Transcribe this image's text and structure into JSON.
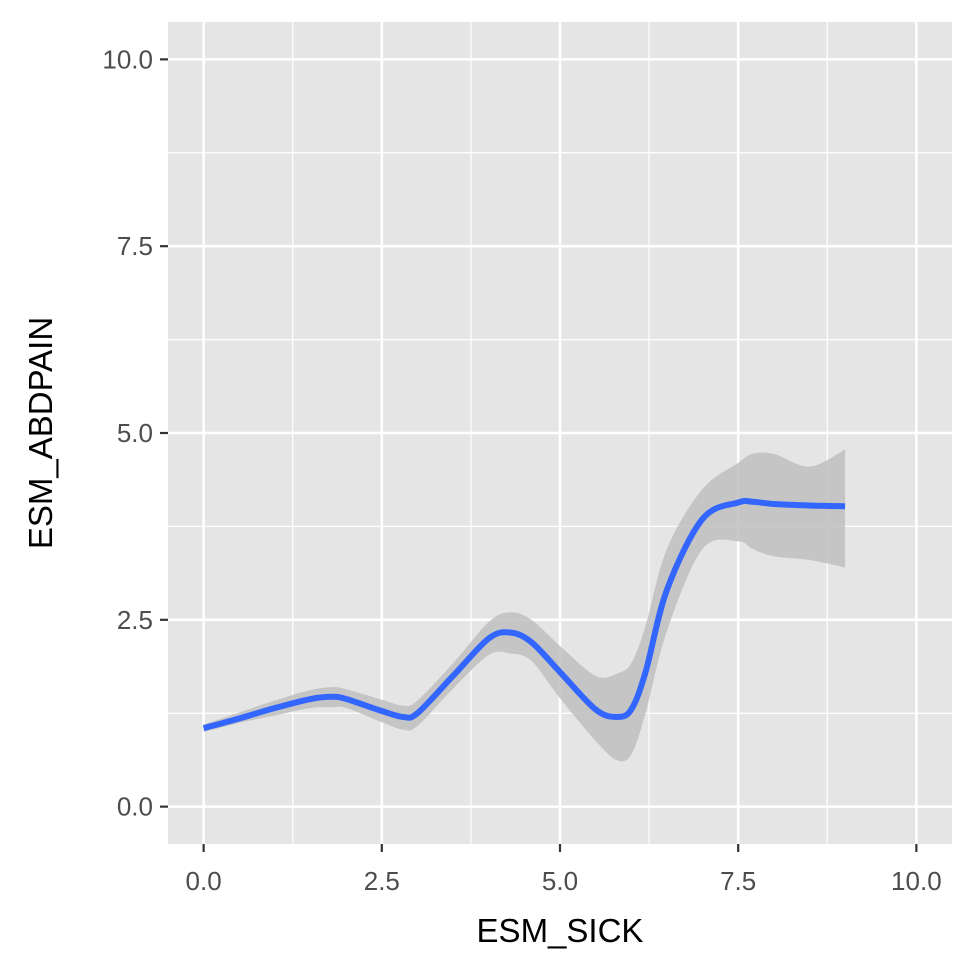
{
  "chart_data": {
    "type": "line",
    "title": "",
    "xlabel": "ESM_SICK",
    "ylabel": "ESM_ABDPAIN",
    "xlim": [
      -0.5,
      10.5
    ],
    "ylim": [
      -0.5,
      10.5
    ],
    "x_ticks": [
      0,
      2.5,
      5,
      7.5,
      10
    ],
    "x_tick_labels": [
      "0.0",
      "2.5",
      "5.0",
      "7.5",
      "10.0"
    ],
    "y_ticks": [
      0,
      2.5,
      5,
      7.5,
      10
    ],
    "y_tick_labels": [
      "0.0",
      "2.5",
      "5.0",
      "7.5",
      "10.0"
    ],
    "grid": true,
    "legend": "none",
    "colors": {
      "panel_background": "#e5e5e5",
      "grid": "#ffffff",
      "line": "#3366ff",
      "ribbon": "#c0c0c0"
    },
    "series": [
      {
        "kind": "smooth_line",
        "x": [
          0,
          0.5,
          1,
          1.5,
          1.8,
          2,
          2.5,
          2.8,
          3,
          3.5,
          4,
          4.3,
          4.6,
          5,
          5.5,
          5.8,
          6,
          6.2,
          6.5,
          7,
          7.5,
          7.7,
          8,
          8.5,
          9
        ],
        "y": [
          1.05,
          1.18,
          1.32,
          1.44,
          1.47,
          1.44,
          1.28,
          1.2,
          1.25,
          1.75,
          2.25,
          2.33,
          2.2,
          1.8,
          1.3,
          1.2,
          1.3,
          1.8,
          2.9,
          3.85,
          4.07,
          4.08,
          4.05,
          4.03,
          4.02
        ],
        "lower": [
          1.0,
          1.12,
          1.22,
          1.32,
          1.33,
          1.32,
          1.13,
          1.03,
          1.08,
          1.58,
          2.03,
          2.05,
          1.95,
          1.45,
          0.88,
          0.62,
          0.7,
          1.25,
          2.35,
          3.45,
          3.55,
          3.45,
          3.35,
          3.3,
          3.2
        ],
        "upper": [
          1.1,
          1.26,
          1.42,
          1.56,
          1.6,
          1.57,
          1.43,
          1.35,
          1.42,
          1.92,
          2.47,
          2.6,
          2.5,
          2.15,
          1.75,
          1.78,
          1.92,
          2.42,
          3.45,
          4.25,
          4.6,
          4.72,
          4.72,
          4.55,
          4.78
        ]
      }
    ]
  }
}
